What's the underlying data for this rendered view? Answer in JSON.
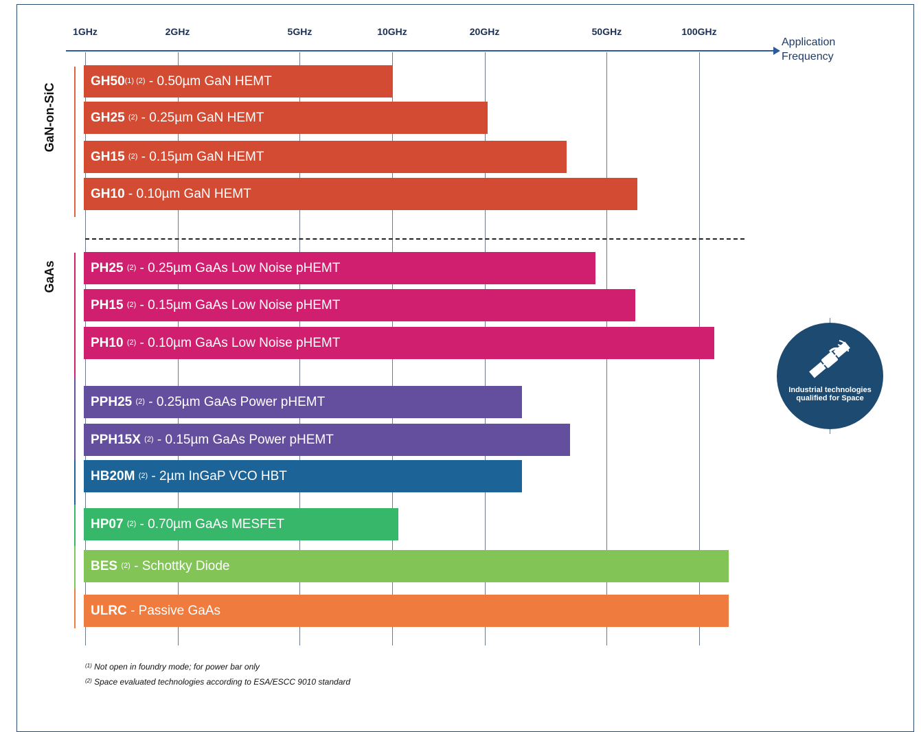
{
  "chart_data": {
    "type": "bar",
    "orientation": "horizontal",
    "x_scale": "log",
    "x_unit": "GHz",
    "x_ticks": [
      {
        "value": 1,
        "label": "1GHz"
      },
      {
        "value": 2,
        "label": "2GHz"
      },
      {
        "value": 5,
        "label": "5GHz"
      },
      {
        "value": 10,
        "label": "10GHz"
      },
      {
        "value": 20,
        "label": "20GHz"
      },
      {
        "value": 50,
        "label": "50GHz"
      },
      {
        "value": 100,
        "label": "100GHz"
      }
    ],
    "x_axis_label": "Application Frequency",
    "groups": [
      {
        "label": "GaN-on-SiC",
        "color": "#d24b32"
      },
      {
        "label": "GaAs",
        "color": "#d01f6e"
      }
    ],
    "bars": [
      {
        "name": "GH50",
        "footnote": "(1) (2)",
        "desc": "- 0.50µm GaN HEMT",
        "max_ghz": 10,
        "color": "#d24b32"
      },
      {
        "name": "GH25",
        "footnote": "(2)",
        "desc": "- 0.25µm GaN HEMT",
        "max_ghz": 20.5,
        "color": "#d24b32"
      },
      {
        "name": "GH15",
        "footnote": "(2)",
        "desc": "- 0.15µm GaN HEMT",
        "max_ghz": 37,
        "color": "#d24b32"
      },
      {
        "name": "GH10",
        "footnote": "",
        "desc": "- 0.10µm GaN HEMT",
        "max_ghz": 63,
        "color": "#d24b32"
      },
      {
        "name": "PH25",
        "footnote": "(2)",
        "desc": "- 0.25µm GaAs Low Noise pHEMT",
        "max_ghz": 46,
        "color": "#d01f6e"
      },
      {
        "name": "PH15",
        "footnote": "(2)",
        "desc": "- 0.15µm GaAs Low Noise pHEMT",
        "max_ghz": 62,
        "color": "#d01f6e"
      },
      {
        "name": "PH10",
        "footnote": "(2)",
        "desc": "- 0.10µm GaAs Low Noise pHEMT",
        "max_ghz": 112,
        "color": "#d01f6e"
      },
      {
        "name": "PPH25",
        "footnote": "(2)",
        "desc": "- 0.25µm GaAs Power pHEMT",
        "max_ghz": 26.5,
        "color": "#644e9e"
      },
      {
        "name": "PPH15X",
        "footnote": "(2)",
        "desc": "- 0.15µm GaAs Power pHEMT",
        "max_ghz": 38,
        "color": "#644e9e"
      },
      {
        "name": "HB20M",
        "footnote": "(2)",
        "desc": "- 2µm InGaP VCO HBT",
        "max_ghz": 26.5,
        "color": "#1c6398"
      },
      {
        "name": "HP07",
        "footnote": "(2)",
        "desc": "- 0.70µm GaAs MESFET",
        "max_ghz": 10.5,
        "color": "#37b76a"
      },
      {
        "name": "BES",
        "footnote": "(2)",
        "desc": "- Schottky Diode",
        "max_ghz": 125,
        "color": "#82c556"
      },
      {
        "name": "ULRC",
        "footnote": "",
        "desc": "- Passive GaAs",
        "max_ghz": 125,
        "color": "#f07b3e"
      }
    ]
  },
  "badge": {
    "text": "Industrial technologies qualified for Space",
    "icon": "satellite-icon",
    "color": "#1c4a70"
  },
  "footnotes": [
    {
      "mark": "(1)",
      "text": "Not open in foundry mode; for power bar only"
    },
    {
      "mark": "(2)",
      "text": "Space evaluated technologies according to ESA/ESCC 9010 standard"
    }
  ]
}
